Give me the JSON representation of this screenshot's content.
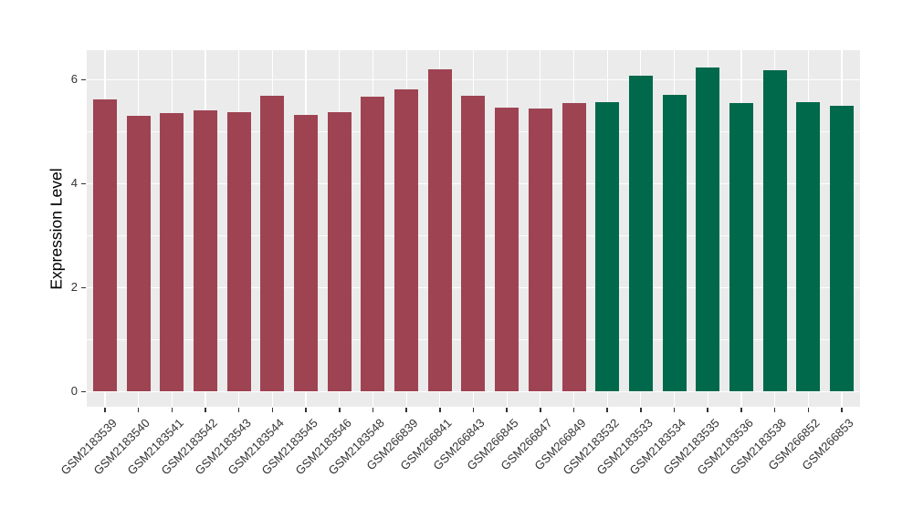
{
  "figure": {
    "background": "#FFFFFF",
    "panel_background": "#EBEBEB",
    "grid_color": "#FFFFFF"
  },
  "chart_data": {
    "type": "bar",
    "title": "",
    "xlabel": "",
    "ylabel": "Expression Level",
    "ylim": [
      -0.3,
      6.56
    ],
    "yticks": [
      0,
      2,
      4,
      6
    ],
    "ytick_labels": [
      "0",
      "2",
      "4",
      "6"
    ],
    "yticks_minor": [
      1,
      3,
      5
    ],
    "grid": "on",
    "legend": "none",
    "categories": [
      "GSM2183539",
      "GSM2183540",
      "GSM2183541",
      "GSM2183542",
      "GSM2183543",
      "GSM2183544",
      "GSM2183545",
      "GSM2183546",
      "GSM2183548",
      "GSM266839",
      "GSM266841",
      "GSM266843",
      "GSM266845",
      "GSM266847",
      "GSM266849",
      "GSM2183532",
      "GSM2183533",
      "GSM2183534",
      "GSM2183535",
      "GSM2183536",
      "GSM2183538",
      "GSM266852",
      "GSM266853"
    ],
    "values": [
      5.62,
      5.29,
      5.35,
      5.4,
      5.36,
      5.68,
      5.32,
      5.37,
      5.67,
      5.8,
      6.2,
      5.68,
      5.45,
      5.43,
      5.55,
      5.56,
      6.07,
      5.7,
      6.23,
      5.54,
      6.18,
      5.56,
      5.5
    ],
    "groups": [
      "group1",
      "group1",
      "group1",
      "group1",
      "group1",
      "group1",
      "group1",
      "group1",
      "group1",
      "group1",
      "group1",
      "group1",
      "group1",
      "group1",
      "group1",
      "group2",
      "group2",
      "group2",
      "group2",
      "group2",
      "group2",
      "group2",
      "group2"
    ],
    "group_colors": {
      "group1": "#9E4352",
      "group2": "#00694B"
    }
  }
}
